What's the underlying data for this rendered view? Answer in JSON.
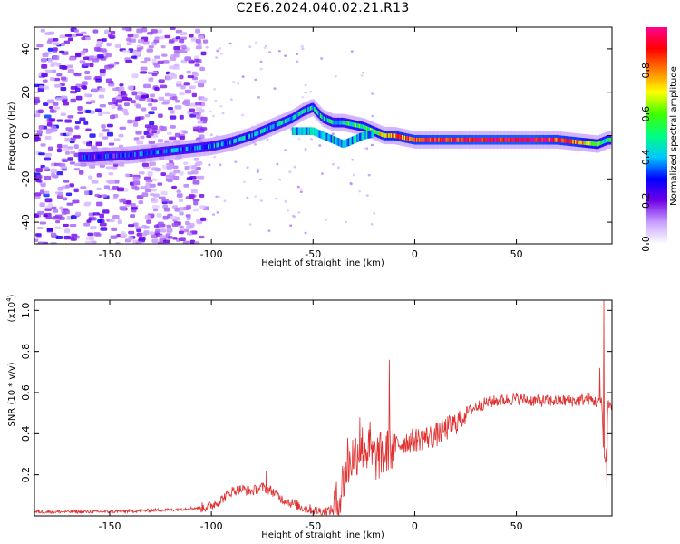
{
  "title": "C2E6.2024.040.02.21.R13",
  "chart_data": [
    {
      "type": "heatmap",
      "xlabel": "Height of straight line (km)",
      "ylabel": "Frequency (Hz)",
      "xlim": [
        -187,
        97
      ],
      "ylim": [
        -50,
        50
      ],
      "x_ticks": [
        "-150",
        "-100",
        "-50",
        "0",
        "50"
      ],
      "x_tick_values": [
        -150,
        -100,
        -50,
        0,
        50
      ],
      "y_ticks": [
        "-40",
        "-20",
        "0",
        "20",
        "40"
      ],
      "y_tick_values": [
        -40,
        -20,
        0,
        20,
        40
      ],
      "colorbar": {
        "label": "Normalized spectral amplitude",
        "ticks": [
          "0.0",
          "0.2",
          "0.4",
          "0.6",
          "0.8"
        ],
        "tick_values": [
          0,
          0.2,
          0.4,
          0.6,
          0.8
        ],
        "range": [
          0,
          1
        ],
        "colors": [
          "#ffffff",
          "#c8a0ff",
          "#7000e8",
          "#0000ff",
          "#00c8ff",
          "#00ff80",
          "#40ff00",
          "#ffff00",
          "#ff8000",
          "#ff0000",
          "#ff0090"
        ]
      },
      "ridge": {
        "x": [
          -160,
          -140,
          -120,
          -100,
          -90,
          -80,
          -70,
          -60,
          -55,
          -50,
          -45,
          -40,
          -35,
          -30,
          -25,
          -20,
          -15,
          -10,
          -5,
          0,
          10,
          20,
          30,
          40,
          50,
          60,
          70,
          80,
          90,
          95
        ],
        "y": [
          -10,
          -9,
          -7,
          -5,
          -3,
          0,
          4,
          8,
          11,
          13,
          8,
          6,
          6,
          5,
          4,
          2,
          0,
          0,
          -1,
          -2,
          -2,
          -2,
          -2,
          -2,
          -2,
          -2,
          -2,
          -3,
          -4,
          -2
        ]
      },
      "secondary_branch": {
        "x": [
          -60,
          -50,
          -40,
          -35,
          -30,
          -25,
          -20
        ],
        "y": [
          2,
          2,
          -2,
          -4,
          -2,
          0,
          1
        ]
      },
      "ridge_amplitude": {
        "x": [
          -160,
          -100,
          -60,
          -40,
          -20,
          -15,
          -5,
          0,
          10,
          20,
          30,
          60,
          70,
          80,
          90,
          95
        ],
        "a": [
          0.25,
          0.35,
          0.45,
          0.45,
          0.6,
          0.75,
          0.8,
          0.85,
          0.9,
          0.9,
          0.95,
          0.95,
          0.85,
          0.8,
          0.55,
          0.5
        ]
      },
      "noise_region": {
        "x": [
          -187,
          -103
        ],
        "amplitude": [
          0.05,
          0.15
        ]
      }
    },
    {
      "type": "line",
      "xlabel": "Height of straight line (km)",
      "ylabel": "SNR (10 * v/v)",
      "y_multiplier": "(x10",
      "y_multiplier_exp": "4",
      "y_multiplier_close": ")",
      "xlim": [
        -187,
        97
      ],
      "ylim": [
        0,
        1.05
      ],
      "x_ticks": [
        "-150",
        "-100",
        "-50",
        "0",
        "50"
      ],
      "x_tick_values": [
        -150,
        -100,
        -50,
        0,
        50
      ],
      "y_ticks": [
        "0.2",
        "0.4",
        "0.6",
        "0.8",
        "1.0"
      ],
      "y_tick_values": [
        0.2,
        0.4,
        0.6,
        0.8,
        1.0
      ],
      "color": "#e03030",
      "envelope": {
        "x": [
          -187,
          -150,
          -120,
          -105,
          -100,
          -95,
          -90,
          -85,
          -80,
          -75,
          -70,
          -65,
          -60,
          -55,
          -50,
          -45,
          -40,
          -37,
          -35,
          -32,
          -30,
          -25,
          -20,
          -15,
          -12,
          -10,
          -5,
          0,
          5,
          10,
          15,
          20,
          25,
          30,
          35,
          40,
          50,
          60,
          70,
          80,
          85,
          88,
          90,
          92,
          93,
          94,
          95,
          97
        ],
        "y": [
          0.02,
          0.02,
          0.03,
          0.04,
          0.05,
          0.08,
          0.12,
          0.13,
          0.12,
          0.14,
          0.12,
          0.08,
          0.06,
          0.04,
          0.03,
          0.02,
          0.03,
          0.08,
          0.18,
          0.26,
          0.3,
          0.34,
          0.28,
          0.3,
          0.32,
          0.34,
          0.36,
          0.37,
          0.38,
          0.39,
          0.42,
          0.45,
          0.5,
          0.53,
          0.55,
          0.56,
          0.57,
          0.56,
          0.56,
          0.56,
          0.57,
          0.56,
          0.55,
          0.55,
          0.3,
          0.25,
          0.55,
          0.53
        ]
      },
      "spikes": [
        {
          "x": -12.5,
          "y": 0.76
        },
        {
          "x": -22,
          "y": 0.46
        },
        {
          "x": -27,
          "y": 0.48
        },
        {
          "x": -33,
          "y": 0.38
        },
        {
          "x": -73,
          "y": 0.22
        },
        {
          "x": 93,
          "y": 1.05
        },
        {
          "x": 94.5,
          "y": 0.13
        },
        {
          "x": 91,
          "y": 0.72
        }
      ]
    }
  ]
}
